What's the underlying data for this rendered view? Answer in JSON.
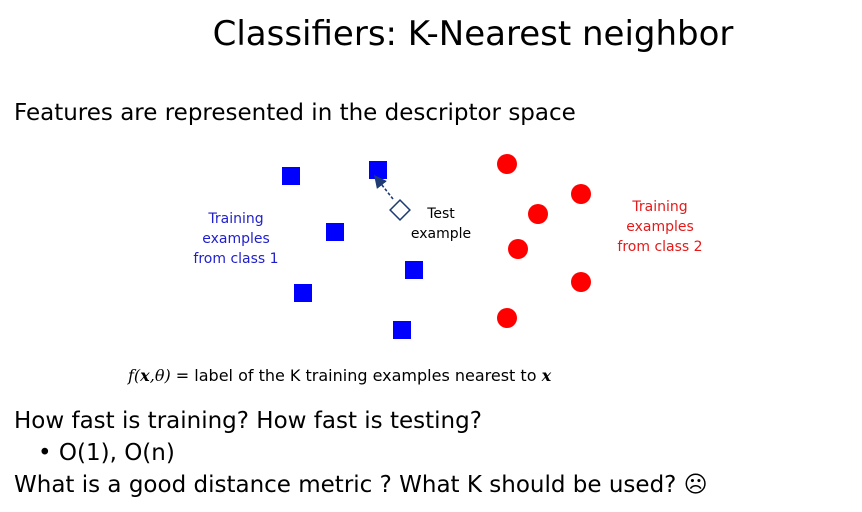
{
  "slide": {
    "title": "Classifiers: K-Nearest neighbor",
    "subtitle": "Features are represented in the descriptor space"
  },
  "diagram": {
    "class1_label": [
      "Training",
      "examples",
      "from class 1"
    ],
    "class2_label": [
      "Training",
      "examples",
      "from class 2"
    ],
    "test_label": [
      "Test",
      "example"
    ],
    "class1_color": "#0000ff",
    "class2_color": "#ff0000"
  },
  "formula": {
    "fn": "f",
    "args": "(x,θ)",
    "arg_x": "x",
    "arg_theta": "θ",
    "text": "= label of the K training examples nearest to",
    "end_var": "x"
  },
  "questions": {
    "q1": "How fast is training? How fast is testing?",
    "bullet": "•",
    "answer": "O(1), O(n)",
    "q2": "What is a good distance metric ? What K should be used? ☹"
  }
}
